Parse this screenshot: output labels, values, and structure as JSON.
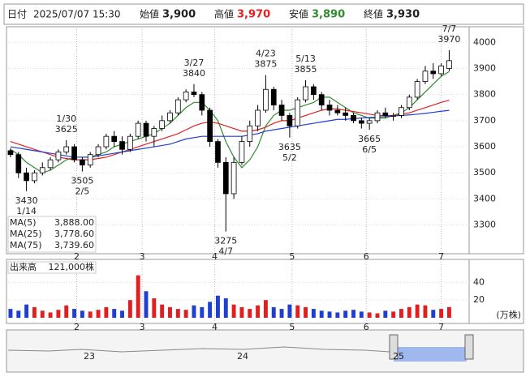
{
  "header": {
    "date_label": "日付",
    "datetime": "2025/07/07 15:30",
    "open_label": "始値",
    "open": "3,900",
    "high_label": "高値",
    "high": "3,970",
    "low_label": "安値",
    "low": "3,890",
    "close_label": "終値",
    "close": "3,930"
  },
  "chart_data": [
    {
      "type": "candlestick",
      "up_color": "#ffffff",
      "down_color": "#000000",
      "xlim": [
        -0.3,
        57.5
      ],
      "ylim": [
        3190,
        4060
      ],
      "yticks": [
        3300,
        3400,
        3500,
        3600,
        3700,
        3800,
        3900,
        4000
      ],
      "xticks": [
        {
          "value": 8.3,
          "label": "2"
        },
        {
          "value": 16.5,
          "label": "3"
        },
        {
          "value": 25.6,
          "label": "4"
        },
        {
          "value": 35.3,
          "label": "5"
        },
        {
          "value": 44.6,
          "label": "6"
        },
        {
          "value": 54,
          "label": "7"
        }
      ],
      "grid": true,
      "open": [
        3585,
        3570,
        3500,
        3470,
        3500,
        3520,
        3550,
        3580,
        3600,
        3550,
        3530,
        3570,
        3600,
        3640,
        3620,
        3590,
        3640,
        3690,
        3640,
        3670,
        3700,
        3730,
        3780,
        3810,
        3800,
        3740,
        3620,
        3540,
        3420,
        3540,
        3620,
        3680,
        3740,
        3820,
        3760,
        3720,
        3680,
        3780,
        3830,
        3800,
        3760,
        3740,
        3730,
        3720,
        3700,
        3690,
        3700,
        3730,
        3720,
        3720,
        3750,
        3790,
        3850,
        3890,
        3880,
        3900
      ],
      "high": [
        3595,
        3580,
        3520,
        3510,
        3540,
        3560,
        3590,
        3625,
        3610,
        3560,
        3580,
        3610,
        3650,
        3660,
        3640,
        3650,
        3700,
        3700,
        3680,
        3720,
        3740,
        3790,
        3820,
        3840,
        3810,
        3750,
        3630,
        3560,
        3560,
        3640,
        3700,
        3760,
        3875,
        3830,
        3780,
        3730,
        3790,
        3855,
        3840,
        3810,
        3780,
        3760,
        3750,
        3730,
        3710,
        3710,
        3740,
        3750,
        3730,
        3760,
        3800,
        3860,
        3910,
        3920,
        3920,
        3970
      ],
      "low": [
        3560,
        3480,
        3430,
        3460,
        3490,
        3510,
        3540,
        3570,
        3540,
        3505,
        3520,
        3560,
        3590,
        3600,
        3570,
        3580,
        3630,
        3620,
        3600,
        3660,
        3690,
        3720,
        3770,
        3790,
        3720,
        3600,
        3520,
        3275,
        3400,
        3530,
        3600,
        3660,
        3730,
        3740,
        3700,
        3635,
        3670,
        3770,
        3780,
        3740,
        3720,
        3720,
        3700,
        3690,
        3670,
        3665,
        3690,
        3710,
        3700,
        3710,
        3740,
        3780,
        3840,
        3860,
        3870,
        3890
      ],
      "close": [
        3570,
        3500,
        3470,
        3500,
        3520,
        3550,
        3580,
        3600,
        3550,
        3530,
        3570,
        3600,
        3640,
        3620,
        3590,
        3640,
        3690,
        3640,
        3670,
        3700,
        3730,
        3780,
        3810,
        3800,
        3740,
        3620,
        3540,
        3420,
        3540,
        3620,
        3680,
        3740,
        3820,
        3760,
        3720,
        3680,
        3780,
        3830,
        3800,
        3760,
        3740,
        3730,
        3720,
        3700,
        3690,
        3700,
        3730,
        3720,
        3720,
        3750,
        3790,
        3850,
        3890,
        3880,
        3910,
        3930
      ],
      "series": [
        {
          "name": "MA(5)",
          "latest_label": "3,888.00",
          "color": "#2e8b2e",
          "values": [
            3590,
            3570,
            3540,
            3520,
            3500,
            3510,
            3530,
            3550,
            3560,
            3560,
            3560,
            3570,
            3580,
            3600,
            3610,
            3620,
            3630,
            3640,
            3650,
            3670,
            3690,
            3720,
            3750,
            3770,
            3770,
            3740,
            3700,
            3620,
            3560,
            3520,
            3550,
            3600,
            3680,
            3720,
            3740,
            3740,
            3750,
            3760,
            3770,
            3790,
            3790,
            3770,
            3750,
            3730,
            3720,
            3710,
            3710,
            3710,
            3720,
            3730,
            3750,
            3780,
            3810,
            3840,
            3870,
            3888
          ]
        },
        {
          "name": "MA(25)",
          "latest_label": "3,778.60",
          "color": "#e02020",
          "values": [
            3620,
            3610,
            3600,
            3590,
            3580,
            3570,
            3560,
            3555,
            3550,
            3550,
            3550,
            3555,
            3560,
            3570,
            3580,
            3590,
            3600,
            3610,
            3620,
            3630,
            3640,
            3650,
            3665,
            3680,
            3690,
            3695,
            3690,
            3680,
            3670,
            3660,
            3660,
            3665,
            3675,
            3690,
            3700,
            3700,
            3710,
            3720,
            3730,
            3740,
            3745,
            3745,
            3740,
            3735,
            3730,
            3725,
            3720,
            3720,
            3720,
            3725,
            3730,
            3740,
            3750,
            3760,
            3770,
            3778.6
          ]
        },
        {
          "name": "MA(75)",
          "latest_label": "3,739.60",
          "color": "#1f3fd0",
          "values": [
            3600,
            3595,
            3590,
            3585,
            3580,
            3575,
            3570,
            3565,
            3560,
            3560,
            3560,
            3565,
            3570,
            3575,
            3580,
            3585,
            3590,
            3595,
            3600,
            3605,
            3610,
            3620,
            3630,
            3635,
            3640,
            3640,
            3640,
            3640,
            3640,
            3640,
            3645,
            3650,
            3660,
            3665,
            3670,
            3675,
            3680,
            3685,
            3690,
            3695,
            3700,
            3705,
            3705,
            3708,
            3710,
            3712,
            3714,
            3716,
            3718,
            3720,
            3722,
            3725,
            3728,
            3732,
            3736,
            3739.6
          ]
        }
      ],
      "annotations": [
        {
          "x": 2,
          "price": 3430,
          "date": "1/14",
          "kind": "low"
        },
        {
          "x": 7,
          "price": 3625,
          "date": "1/30",
          "kind": "high"
        },
        {
          "x": 9,
          "price": 3505,
          "date": "2/5",
          "kind": "low"
        },
        {
          "x": 23,
          "price": 3840,
          "date": "3/27",
          "kind": "high"
        },
        {
          "x": 27,
          "price": 3275,
          "date": "4/7",
          "kind": "low"
        },
        {
          "x": 32,
          "price": 3875,
          "date": "4/23",
          "kind": "high"
        },
        {
          "x": 35,
          "price": 3635,
          "date": "5/2",
          "kind": "low"
        },
        {
          "x": 37,
          "price": 3855,
          "date": "5/13",
          "kind": "high"
        },
        {
          "x": 45,
          "price": 3665,
          "date": "6/5",
          "kind": "low"
        },
        {
          "x": 55,
          "price": 3970,
          "date": "7/7",
          "kind": "high"
        }
      ]
    },
    {
      "type": "volume",
      "name": "出来高",
      "latest_label": "121,000株",
      "unit": "(万株)",
      "up_color": "#e02020",
      "down_color": "#1f3fd0",
      "ylim": [
        0,
        66
      ],
      "yticks": [
        20,
        40
      ],
      "values": [
        10,
        8,
        15,
        12,
        8,
        6,
        9,
        14,
        10,
        8,
        7,
        9,
        12,
        10,
        8,
        20,
        48,
        30,
        22,
        15,
        12,
        10,
        9,
        14,
        12,
        18,
        25,
        22,
        15,
        12,
        10,
        14,
        20,
        12,
        10,
        15,
        14,
        12,
        10,
        8,
        7,
        6,
        8,
        9,
        7,
        6,
        5,
        8,
        7,
        10,
        12,
        15,
        14,
        9,
        10,
        12.1
      ]
    }
  ],
  "navigator": {
    "labels": [
      "23",
      "24",
      "25"
    ]
  }
}
